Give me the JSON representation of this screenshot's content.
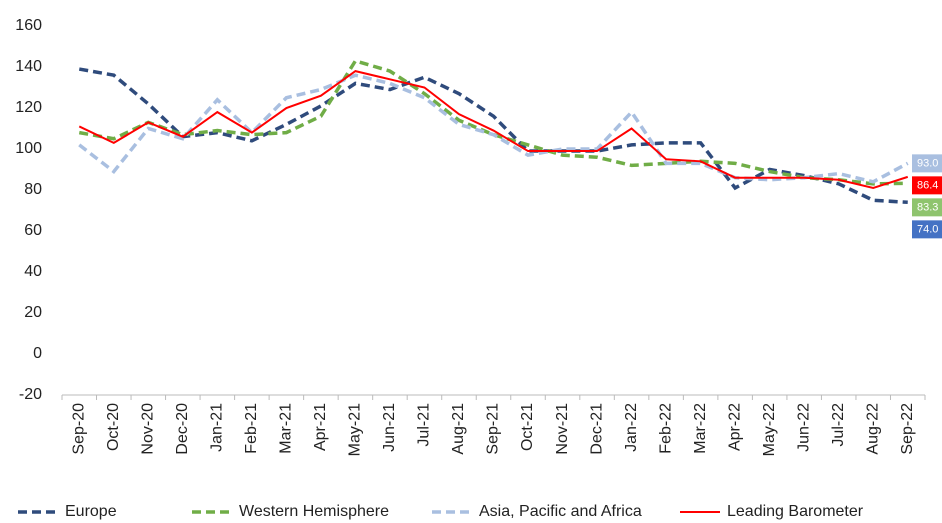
{
  "chart_data": {
    "type": "line",
    "categories": [
      "Sep-20",
      "Oct-20",
      "Nov-20",
      "Dec-20",
      "Jan-21",
      "Feb-21",
      "Mar-21",
      "Apr-21",
      "May-21",
      "Jun-21",
      "Jul-21",
      "Aug-21",
      "Sep-21",
      "Oct-21",
      "Nov-21",
      "Dec-21",
      "Jan-22",
      "Feb-22",
      "Mar-22",
      "Apr-22",
      "May-22",
      "Jun-22",
      "Jul-22",
      "Aug-22",
      "Sep-22"
    ],
    "series": [
      {
        "name": "Europe",
        "color": "#2f4b7c",
        "label_color": "#4472c4",
        "dashed": true,
        "values": [
          139,
          136,
          122,
          106,
          108,
          104,
          112,
          121,
          132,
          129,
          135,
          127,
          116,
          99,
          99,
          99,
          102,
          103,
          103,
          81,
          90,
          87,
          83,
          75,
          74
        ],
        "value_labels": [
          null,
          null,
          null,
          null,
          null,
          null,
          null,
          null,
          null,
          null,
          null,
          null,
          null,
          null,
          null,
          null,
          null,
          null,
          null,
          null,
          null,
          null,
          null,
          null,
          "74.0"
        ]
      },
      {
        "name": "Western Hemisphere",
        "color": "#70ad47",
        "label_color": "#8fc46e",
        "dashed": true,
        "values": [
          108,
          105,
          113,
          107,
          109,
          107,
          108,
          116,
          143,
          138,
          127,
          114,
          107,
          102,
          97,
          96,
          92,
          93,
          94,
          93,
          89,
          86,
          85,
          83,
          83.3
        ],
        "value_labels": [
          null,
          null,
          null,
          null,
          null,
          null,
          null,
          null,
          null,
          null,
          null,
          null,
          null,
          null,
          null,
          null,
          null,
          null,
          null,
          null,
          null,
          null,
          null,
          null,
          "83.3"
        ]
      },
      {
        "name": "Asia, Pacific and Africa",
        "color": "#a9bfe0",
        "label_color": "#a9bfe0",
        "dashed": true,
        "values": [
          102,
          89,
          110,
          105,
          124,
          108,
          125,
          129,
          136,
          132,
          125,
          112,
          107,
          97,
          100,
          100,
          118,
          93,
          93,
          86,
          85,
          86,
          88,
          84,
          93
        ],
        "value_labels": [
          null,
          null,
          null,
          null,
          null,
          null,
          null,
          null,
          null,
          null,
          null,
          null,
          null,
          null,
          null,
          null,
          null,
          null,
          null,
          null,
          null,
          null,
          null,
          null,
          "93.0"
        ]
      },
      {
        "name": "Leading Barometer",
        "color": "#ff0000",
        "label_color": "#ff0000",
        "dashed": false,
        "values": [
          111,
          103,
          113,
          106,
          118,
          108,
          120,
          126,
          138,
          134,
          130,
          117,
          109,
          99,
          99,
          99,
          110,
          95,
          94,
          86,
          86,
          86,
          85,
          81,
          86.4
        ],
        "value_labels": [
          null,
          null,
          null,
          null,
          null,
          null,
          null,
          null,
          null,
          null,
          null,
          null,
          null,
          null,
          null,
          null,
          null,
          null,
          null,
          null,
          null,
          null,
          null,
          null,
          "86.4"
        ]
      }
    ],
    "ylim": [
      -20,
      160
    ],
    "yticks": [
      -20,
      0,
      20,
      40,
      60,
      80,
      100,
      120,
      140,
      160
    ],
    "grid": false
  }
}
